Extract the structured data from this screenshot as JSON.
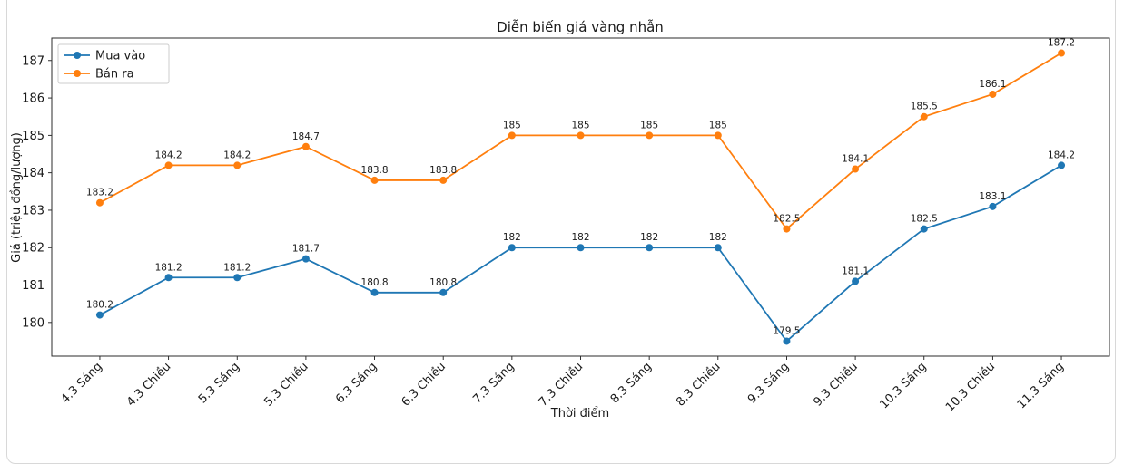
{
  "page": {
    "background": "#ffffff",
    "card_border_color": "#d8d8d8"
  },
  "chart_data": {
    "type": "line",
    "title": "Diễn biến giá vàng nhẫn",
    "xlabel": "Thời điểm",
    "ylabel": "Giá (triệu đồng/lượng)",
    "categories": [
      "4.3 Sáng",
      "4.3 Chiều",
      "5.3 Sáng",
      "5.3 Chiều",
      "6.3 Sáng",
      "6.3 Chiều",
      "7.3 Sáng",
      "7.3 Chiều",
      "8.3 Sáng",
      "8.3 Chiều",
      "9.3 Sáng",
      "9.3 Chiều",
      "10.3 Sáng",
      "10.3 Chiều",
      "11.3 Sáng"
    ],
    "series": [
      {
        "name": "Mua vào",
        "color": "#1f77b4",
        "values": [
          180.2,
          181.2,
          181.2,
          181.7,
          180.8,
          180.8,
          182,
          182,
          182,
          182,
          179.5,
          181.1,
          182.5,
          183.1,
          184.2
        ]
      },
      {
        "name": "Bán ra",
        "color": "#ff7f0e",
        "values": [
          183.2,
          184.2,
          184.2,
          184.7,
          183.8,
          183.8,
          185,
          185,
          185,
          185,
          182.5,
          184.1,
          185.5,
          186.1,
          187.2
        ]
      }
    ],
    "yticks": [
      180,
      181,
      182,
      183,
      184,
      185,
      186,
      187
    ],
    "ylim": [
      179.1,
      187.6
    ],
    "grid": false,
    "point_labels": true,
    "legend_position": "upper left",
    "axis_color": "#1a1a1a",
    "marker_size": 4,
    "line_width": 1.8
  }
}
